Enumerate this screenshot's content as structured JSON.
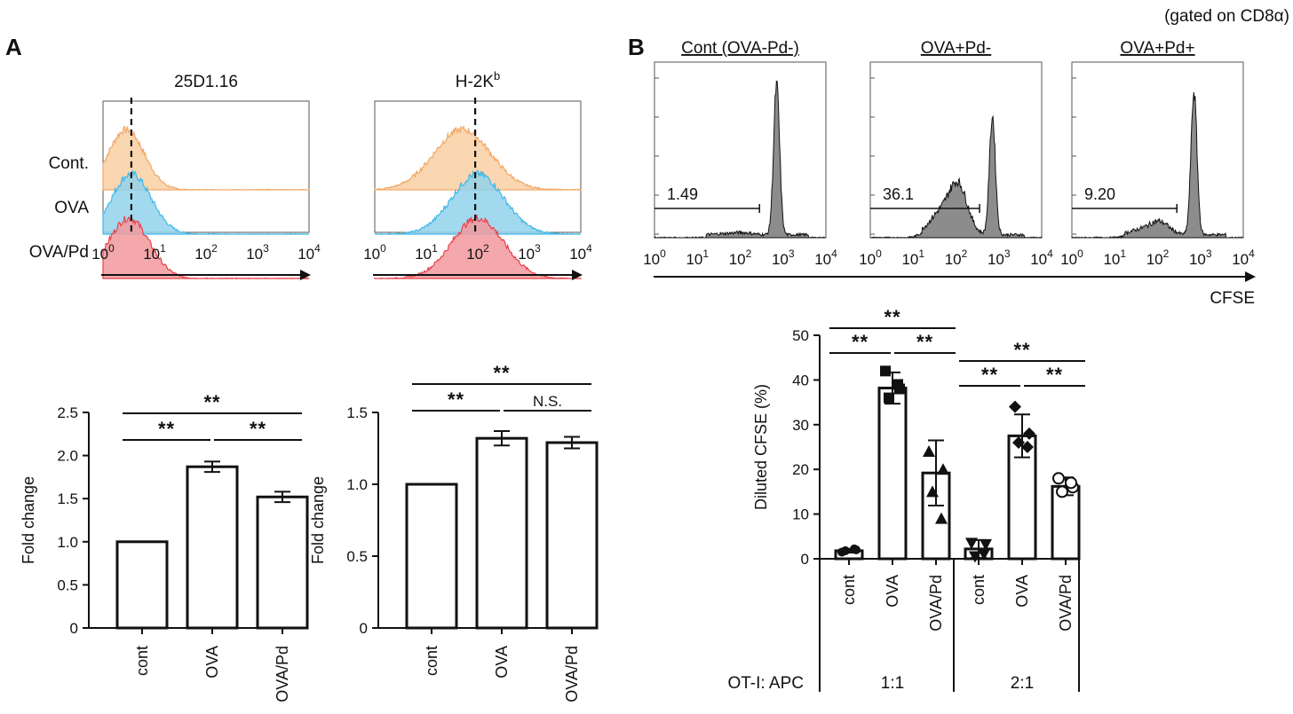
{
  "figure": {
    "gating_note": "(gated on CD8α)",
    "panel_a_label": "A",
    "panel_b_label": "B"
  },
  "chart_data": [
    {
      "id": "a_hist_25d",
      "type": "histogram-overlay",
      "title": "25D1.16",
      "x_tick_labels": [
        "10",
        "10",
        "10",
        "10",
        "10"
      ],
      "x_tick_exponents": [
        "0",
        "1",
        "2",
        "3",
        "4"
      ],
      "x_range_log10": [
        0,
        4
      ],
      "rows": [
        {
          "label": "Cont.",
          "color": "#f3a865",
          "fill": "#f9cfa3",
          "peak_log10": 0.45,
          "sigma": 0.35
        },
        {
          "label": "OVA",
          "color": "#41b8e6",
          "fill": "#92d2ec",
          "peak_log10": 0.55,
          "sigma": 0.38
        },
        {
          "label": "OVA/Pd",
          "color": "#e8424c",
          "fill": "#f2999d",
          "peak_log10": 0.5,
          "sigma": 0.4
        }
      ],
      "dashed_line_log10": 0.55
    },
    {
      "id": "a_hist_h2kb",
      "type": "histogram-overlay",
      "title": "H-2K",
      "title_sup": "b",
      "x_tick_labels": [
        "10",
        "10",
        "10",
        "10",
        "10"
      ],
      "x_tick_exponents": [
        "0",
        "1",
        "2",
        "3",
        "4"
      ],
      "x_range_log10": [
        0,
        4
      ],
      "rows": [
        {
          "label": "Cont.",
          "color": "#f3a865",
          "fill": "#f9cfa3",
          "peak_log10": 1.7,
          "sigma": 0.55
        },
        {
          "label": "OVA",
          "color": "#41b8e6",
          "fill": "#92d2ec",
          "peak_log10": 2.0,
          "sigma": 0.5
        },
        {
          "label": "OVA/Pd",
          "color": "#e8424c",
          "fill": "#f2999d",
          "peak_log10": 2.0,
          "sigma": 0.5
        }
      ],
      "dashed_line_log10": 1.95
    },
    {
      "id": "a_bar_25d",
      "type": "bar",
      "ylabel": "Fold change",
      "ylim": [
        0,
        2.5
      ],
      "y_ticks": [
        "0",
        "0.5",
        "1.0",
        "1.5",
        "2.0",
        "2.5"
      ],
      "y_tick_values": [
        0,
        0.5,
        1.0,
        1.5,
        2.0,
        2.5
      ],
      "categories": [
        "cont",
        "OVA",
        "OVA/Pd"
      ],
      "values": [
        1.0,
        1.87,
        1.52
      ],
      "errors": [
        0,
        0.06,
        0.06
      ],
      "significance": [
        {
          "from": 0,
          "to": 1,
          "label": "**",
          "level": 1
        },
        {
          "from": 1,
          "to": 2,
          "label": "**",
          "level": 1
        },
        {
          "from": 0,
          "to": 2,
          "label": "**",
          "level": 2
        }
      ]
    },
    {
      "id": "a_bar_h2kb",
      "type": "bar",
      "ylabel": "Fold change",
      "ylim": [
        0,
        1.5
      ],
      "y_ticks": [
        "0",
        "0.5",
        "1.0",
        "1.5"
      ],
      "y_tick_values": [
        0,
        0.5,
        1.0,
        1.5
      ],
      "categories": [
        "cont",
        "OVA",
        "OVA/Pd"
      ],
      "values": [
        1.0,
        1.32,
        1.29
      ],
      "errors": [
        0,
        0.05,
        0.04
      ],
      "significance": [
        {
          "from": 0,
          "to": 1,
          "label": "**",
          "level": 1
        },
        {
          "from": 1,
          "to": 2,
          "label": "N.S.",
          "level": 1
        },
        {
          "from": 0,
          "to": 2,
          "label": "**",
          "level": 2
        }
      ]
    },
    {
      "id": "b_hist",
      "type": "histogram",
      "x_tick_labels": [
        "10",
        "10",
        "10",
        "10",
        "10"
      ],
      "x_tick_exponents": [
        "0",
        "1",
        "2",
        "3",
        "4"
      ],
      "x_range_log10": [
        0,
        4
      ],
      "xlabel": "CFSE",
      "panels": [
        {
          "title": "Cont (OVA-Pd-)",
          "gate_value": "1.49",
          "gate_end_log10": 2.45,
          "diluted": 0.015
        },
        {
          "title": "OVA+Pd-",
          "gate_value": "36.1",
          "gate_end_log10": 2.55,
          "diluted": 0.361
        },
        {
          "title": "OVA+Pd+",
          "gate_value": "9.20",
          "gate_end_log10": 2.45,
          "diluted": 0.092
        }
      ],
      "fill": "#8c8c8c"
    },
    {
      "id": "b_bar",
      "type": "bar",
      "ylabel": "Diluted CFSE (%)",
      "ylim": [
        0,
        50
      ],
      "y_ticks": [
        "0",
        "10",
        "20",
        "30",
        "40",
        "50"
      ],
      "y_tick_values": [
        0,
        10,
        20,
        30,
        40,
        50
      ],
      "groups": [
        {
          "label": "1:1",
          "categories": [
            "cont",
            "OVA",
            "OVA/Pd"
          ],
          "values": [
            1.8,
            38.2,
            19.2
          ],
          "errors": [
            0.4,
            3.5,
            7.3
          ],
          "points": [
            [
              1.5,
              2.0,
              1.8,
              2.2
            ],
            [
              42,
              38,
              36,
              39
            ],
            [
              24,
              20,
              15,
              9
            ]
          ],
          "markers": [
            "circle-filled",
            "square",
            "triangle"
          ],
          "significance": [
            {
              "from": 0,
              "to": 1,
              "label": "**",
              "level": 1
            },
            {
              "from": 1,
              "to": 2,
              "label": "**",
              "level": 1
            },
            {
              "from": 0,
              "to": 2,
              "label": "**",
              "level": 2
            }
          ]
        },
        {
          "label": "2:1",
          "categories": [
            "cont",
            "OVA",
            "OVA/Pd"
          ],
          "values": [
            2.2,
            27.5,
            16.2
          ],
          "errors": [
            2.0,
            4.8,
            2.0
          ],
          "points": [
            [
              3.5,
              3.2,
              0.5,
              1.0
            ],
            [
              34,
              28,
              26,
              25
            ],
            [
              18,
              16,
              15,
              17
            ]
          ],
          "markers": [
            "triangle-down",
            "diamond",
            "circle-open"
          ],
          "significance": [
            {
              "from": 0,
              "to": 1,
              "label": "**",
              "level": 1
            },
            {
              "from": 1,
              "to": 2,
              "label": "**",
              "level": 1
            },
            {
              "from": 0,
              "to": 2,
              "label": "**",
              "level": 2
            }
          ]
        }
      ],
      "group_axis_label": "OT-I: APC"
    }
  ]
}
